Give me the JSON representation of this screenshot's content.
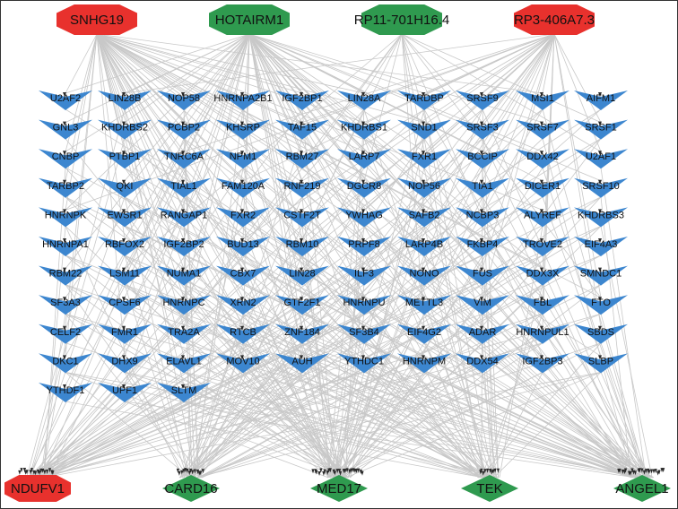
{
  "colors": {
    "edge": "#c8c8c8",
    "edge_dark": "#2a2a2a",
    "rbp": "#3c86cf",
    "red": "#e8312d",
    "green": "#2f9a4f",
    "label": "#111111",
    "frame": "#333333"
  },
  "top_nodes": [
    {
      "label": "SNHG19",
      "color": "red",
      "shape": "octagon"
    },
    {
      "label": "HOTAIRM1",
      "color": "green",
      "shape": "octagon"
    },
    {
      "label": "RP11-701H16.4",
      "color": "green",
      "shape": "octagon"
    },
    {
      "label": "RP3-406A7.3",
      "color": "red",
      "shape": "octagon"
    }
  ],
  "bottom_nodes": [
    {
      "label": "NDUFV1",
      "color": "red",
      "shape": "octagon"
    },
    {
      "label": "CARD16",
      "color": "green",
      "shape": "diamond"
    },
    {
      "label": "MED17",
      "color": "green",
      "shape": "diamond"
    },
    {
      "label": "TEK",
      "color": "green",
      "shape": "diamond"
    },
    {
      "label": "ANGEL1",
      "color": "green",
      "shape": "diamond"
    }
  ],
  "rbp_rows": [
    [
      "U2AF2",
      "LIN28B",
      "NOP58",
      "HNRNPA2B1",
      "IGF2BP1",
      "LIN28A",
      "TARDBP",
      "SRSF9",
      "MSI1",
      "AIFM1"
    ],
    [
      "GNL3",
      "KHDRBS2",
      "PCBP2",
      "KHSRP",
      "TAF15",
      "KHDRBS1",
      "SND1",
      "SRSF3",
      "SRSF7",
      "SRSF1"
    ],
    [
      "CNBP",
      "PTBP1",
      "TNRC6A",
      "NPM1",
      "RBM27",
      "LARP7",
      "FXR1",
      "BCCIP",
      "DDX42",
      "U2AF1"
    ],
    [
      "TARBP2",
      "QKI",
      "TIAL1",
      "FAM120A",
      "RNF219",
      "DGCR8",
      "NOP56",
      "TIA1",
      "DICER1",
      "SRSF10"
    ],
    [
      "HNRNPK",
      "EWSR1",
      "RANGAP1",
      "FXR2",
      "CSTF2T",
      "YWHAG",
      "SAFB2",
      "NCBP3",
      "ALYREF",
      "KHDRBS3"
    ],
    [
      "HNRNPA1",
      "RBFOX2",
      "IGF2BP2",
      "BUD13",
      "RBM10",
      "PRPF8",
      "LARP4B",
      "FKBP4",
      "TROVE2",
      "EIF4A3"
    ],
    [
      "RBM22",
      "LSM11",
      "NUMA1",
      "CBX7",
      "LIN28",
      "ILF3",
      "NONO",
      "FUS",
      "DDX3X",
      "SMNDC1"
    ],
    [
      "SF3A3",
      "CPSF6",
      "HNRNPC",
      "XRN2",
      "GTF2F1",
      "HNRNPU",
      "METTL3",
      "VIM",
      "FBL",
      "FTO"
    ],
    [
      "CELF2",
      "FMR1",
      "TRA2A",
      "RTCB",
      "ZNF184",
      "SF3B4",
      "EIF4G2",
      "ADAR",
      "HNRNPUL1",
      "SBDS"
    ],
    [
      "DKC1",
      "DHX9",
      "ELAVL1",
      "MOV10",
      "AUH",
      "YTHDC1",
      "HNRNPM",
      "DDX54",
      "IGF2BP3",
      "SLBP"
    ],
    [
      "YTHDF1",
      "UPF1",
      "SLTM"
    ]
  ]
}
